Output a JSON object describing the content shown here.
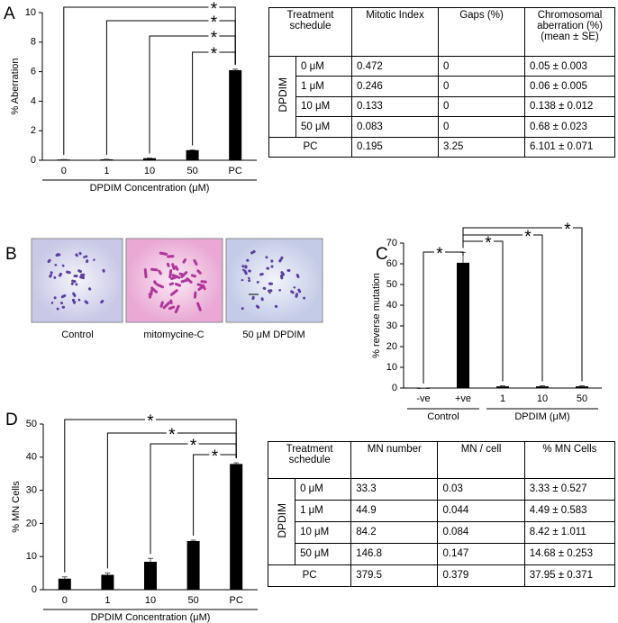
{
  "panel_labels": [
    "A",
    "B",
    "C",
    "D"
  ],
  "chart_data": [
    {
      "type": "bar",
      "ylabel": "% Aberration",
      "xlabel": "DPDIM Concentration (μM)",
      "categories": [
        "0",
        "1",
        "10",
        "50",
        "PC"
      ],
      "values": [
        0.05,
        0.06,
        0.138,
        0.68,
        6.101
      ],
      "errors": [
        0.003,
        0.005,
        0.012,
        0.023,
        0.071
      ],
      "color": "#000000",
      "ylim": [
        0,
        10
      ],
      "yticks": [
        0,
        2,
        4,
        6,
        8,
        10
      ],
      "annotations": [
        "*",
        "*",
        "*",
        "*"
      ]
    },
    {
      "type": "bar",
      "ylabel": "% reverse mutation",
      "categories": [
        "-ve",
        "+ve",
        "1",
        "10",
        "50"
      ],
      "values": [
        0,
        60.5,
        0.8,
        0.8,
        0.8
      ],
      "errors": [
        0,
        5,
        0.3,
        0.3,
        0.3
      ],
      "group_labels": [
        "Control",
        "DPDIM (μM)"
      ],
      "color": "#000000",
      "ylim": [
        0,
        70
      ],
      "yticks": [
        0,
        10,
        20,
        30,
        40,
        50,
        60,
        70
      ],
      "annotations": [
        "*",
        "*",
        "*",
        "*"
      ]
    },
    {
      "type": "bar",
      "ylabel": "% MN Cells",
      "xlabel": "DPDIM Concentration (μM)",
      "categories": [
        "0",
        "1",
        "10",
        "50",
        "PC"
      ],
      "values": [
        3.33,
        4.49,
        8.42,
        14.68,
        37.95
      ],
      "errors": [
        0.527,
        0.583,
        1.011,
        0.253,
        0.371
      ],
      "color": "#000000",
      "ylim": [
        0,
        50
      ],
      "yticks": [
        0,
        10,
        20,
        30,
        40,
        50
      ],
      "annotations": [
        "*",
        "*",
        "*",
        "*"
      ]
    }
  ],
  "images": {
    "captions": [
      "Control",
      "mitomycine-C",
      "50 μM DPDIM"
    ]
  },
  "tables": [
    {
      "header": [
        "Treatment schedule",
        "Mitotic Index",
        "Gaps (%)",
        "Chromosomal aberration (%) (mean ± SE)"
      ],
      "group": "DPDIM",
      "rows": [
        [
          "0 μM",
          "0.472",
          "0",
          "0.05 ± 0.003"
        ],
        [
          "1 μM",
          "0.246",
          "0",
          "0.06 ± 0.005"
        ],
        [
          "10 μM",
          "0.133",
          "0",
          "0.138 ± 0.012"
        ],
        [
          "50 μM",
          "0.083",
          "0",
          "0.68 ± 0.023"
        ]
      ],
      "total": [
        "PC",
        "0.195",
        "3.25",
        "6.101 ± 0.071"
      ]
    },
    {
      "header": [
        "Treatment schedule",
        "MN number",
        "MN / cell",
        "% MN Cells"
      ],
      "group": "DPDIM",
      "rows": [
        [
          "0 μM",
          "33.3",
          "0.03",
          "3.33 ± 0.527"
        ],
        [
          "1 μM",
          "44.9",
          "0.044",
          "4.49 ± 0.583"
        ],
        [
          "10 μM",
          "84.2",
          "0.084",
          "8.42 ± 1.011"
        ],
        [
          "50 μM",
          "146.8",
          "0.147",
          "14.68 ± 0.253"
        ]
      ],
      "total": [
        "PC",
        "379.5",
        "0.379",
        "37.95 ± 0.371"
      ]
    }
  ]
}
